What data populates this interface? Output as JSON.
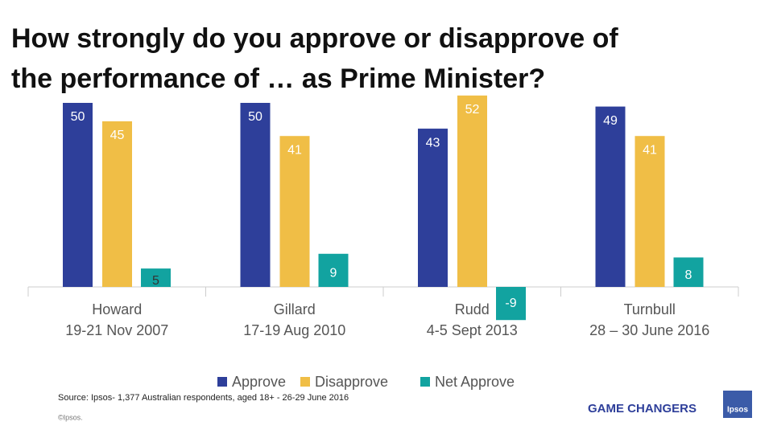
{
  "chart_data": {
    "type": "bar",
    "title_lines": [
      "How strongly do you approve or disapprove of",
      "the performance of … as Prime Minister?"
    ],
    "categories": [
      "Howard",
      "Gillard",
      "Rudd",
      "Turnbull"
    ],
    "category_dates": [
      "19-21 Nov 2007",
      "17-19 Aug 2010",
      "4-5 Sept 2013",
      "28 – 30 June 2016"
    ],
    "series": [
      {
        "name": "Approve",
        "color": "#2e3f9a",
        "values": [
          50,
          50,
          43,
          49
        ]
      },
      {
        "name": "Disapprove",
        "color": "#f0be46",
        "values": [
          45,
          41,
          52,
          41
        ]
      },
      {
        "name": "Net Approve",
        "color": "#12a3a0",
        "values": [
          5,
          9,
          -9,
          8
        ]
      }
    ],
    "source": "Source: Ipsos- 1,377 Australian respondents, aged 18+ - 26-29 June 2016",
    "copyright": "©Ipsos.",
    "brand_tagline": "GAME CHANGERS",
    "logo_text": "Ipsos"
  }
}
